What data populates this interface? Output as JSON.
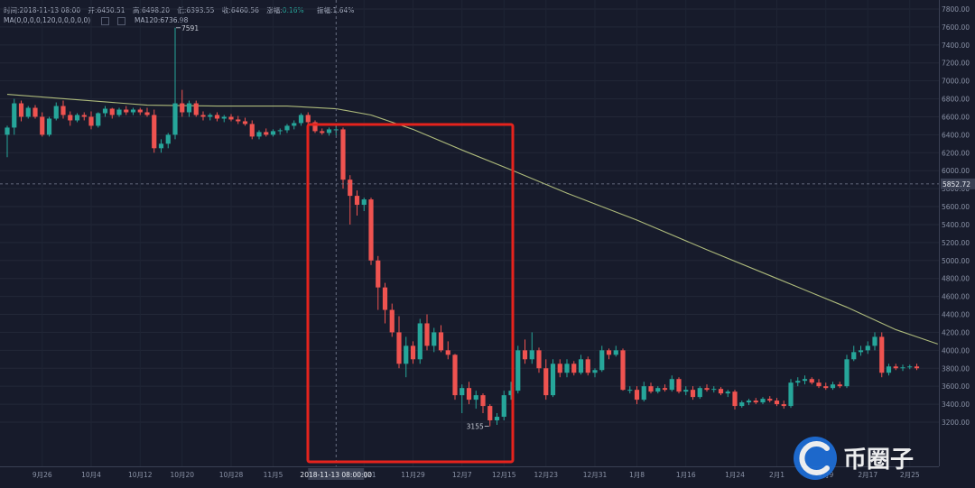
{
  "header": {
    "time": "时间:2018-11-13 08:00",
    "open": "开:6450.51",
    "high": "高:6498.20",
    "low": "低:6393.55",
    "close": "收:6460.56",
    "change_label": "涨幅:",
    "change_value": "0.16%",
    "amplitude": "振幅:1.64%",
    "ma_params": "MA(0,0,0,0,120,0,0,0,0,0)",
    "ma120": "MA120:6736.98"
  },
  "crosshair": {
    "date_label": "2018-11-13 08:00:00",
    "price_label": "5852.72"
  },
  "annotations": {
    "high_label": "7591",
    "low_label": "3155"
  },
  "watermark": {
    "text": "币圈子"
  },
  "colors": {
    "up": "#26a69a",
    "down": "#ef5350",
    "ma": "#c8d68a",
    "highlight_box": "#e5231d",
    "background": "#171b2b"
  },
  "chart_data": {
    "type": "candlestick",
    "series_name": "MA120",
    "y_ticks": [
      "3200.00",
      "3400.00",
      "3600.00",
      "3800.00",
      "4000.00",
      "4200.00",
      "4400.00",
      "4600.00",
      "4800.00",
      "5000.00",
      "5200.00",
      "5400.00",
      "5600.00",
      "5800.00",
      "6000.00",
      "6200.00",
      "6400.00",
      "6600.00",
      "6800.00",
      "7000.00",
      "7200.00",
      "7400.00",
      "7600.00",
      "7800.00"
    ],
    "x_ticks": [
      "9月26",
      "10月4",
      "10月12",
      "10月20",
      "10月28",
      "11月5",
      "11月21",
      "11月29",
      "12月7",
      "12月15",
      "12月23",
      "12月31",
      "1月8",
      "1月16",
      "1月24",
      "2月1",
      "2月9",
      "2月17",
      "2月25"
    ],
    "ylim": [
      3000,
      7850
    ],
    "candles": [
      {
        "o": 6400,
        "h": 6500,
        "l": 6150,
        "c": 6480
      },
      {
        "o": 6480,
        "h": 6800,
        "l": 6400,
        "c": 6750
      },
      {
        "o": 6750,
        "h": 6780,
        "l": 6550,
        "c": 6600
      },
      {
        "o": 6600,
        "h": 6720,
        "l": 6580,
        "c": 6700
      },
      {
        "o": 6700,
        "h": 6730,
        "l": 6580,
        "c": 6600
      },
      {
        "o": 6600,
        "h": 6650,
        "l": 6380,
        "c": 6400
      },
      {
        "o": 6400,
        "h": 6600,
        "l": 6380,
        "c": 6580
      },
      {
        "o": 6580,
        "h": 6760,
        "l": 6560,
        "c": 6720
      },
      {
        "o": 6720,
        "h": 6780,
        "l": 6580,
        "c": 6620
      },
      {
        "o": 6620,
        "h": 6660,
        "l": 6500,
        "c": 6560
      },
      {
        "o": 6560,
        "h": 6640,
        "l": 6540,
        "c": 6620
      },
      {
        "o": 6620,
        "h": 6650,
        "l": 6560,
        "c": 6600
      },
      {
        "o": 6600,
        "h": 6660,
        "l": 6460,
        "c": 6500
      },
      {
        "o": 6500,
        "h": 6650,
        "l": 6480,
        "c": 6640
      },
      {
        "o": 6640,
        "h": 6720,
        "l": 6600,
        "c": 6690
      },
      {
        "o": 6690,
        "h": 6700,
        "l": 6580,
        "c": 6620
      },
      {
        "o": 6620,
        "h": 6700,
        "l": 6600,
        "c": 6680
      },
      {
        "o": 6680,
        "h": 6720,
        "l": 6620,
        "c": 6650
      },
      {
        "o": 6650,
        "h": 6700,
        "l": 6620,
        "c": 6680
      },
      {
        "o": 6680,
        "h": 6700,
        "l": 6620,
        "c": 6650
      },
      {
        "o": 6650,
        "h": 6700,
        "l": 6600,
        "c": 6620
      },
      {
        "o": 6620,
        "h": 6680,
        "l": 6200,
        "c": 6250
      },
      {
        "o": 6250,
        "h": 6350,
        "l": 6200,
        "c": 6300
      },
      {
        "o": 6300,
        "h": 6420,
        "l": 6250,
        "c": 6400
      },
      {
        "o": 6400,
        "h": 7591,
        "l": 6350,
        "c": 6750
      },
      {
        "o": 6750,
        "h": 6900,
        "l": 6600,
        "c": 6650
      },
      {
        "o": 6650,
        "h": 6780,
        "l": 6600,
        "c": 6750
      },
      {
        "o": 6750,
        "h": 6780,
        "l": 6600,
        "c": 6620
      },
      {
        "o": 6620,
        "h": 6660,
        "l": 6560,
        "c": 6600
      },
      {
        "o": 6600,
        "h": 6640,
        "l": 6560,
        "c": 6620
      },
      {
        "o": 6620,
        "h": 6650,
        "l": 6550,
        "c": 6580
      },
      {
        "o": 6580,
        "h": 6620,
        "l": 6540,
        "c": 6600
      },
      {
        "o": 6600,
        "h": 6630,
        "l": 6550,
        "c": 6570
      },
      {
        "o": 6570,
        "h": 6610,
        "l": 6520,
        "c": 6550
      },
      {
        "o": 6550,
        "h": 6590,
        "l": 6500,
        "c": 6520
      },
      {
        "o": 6520,
        "h": 6560,
        "l": 6350,
        "c": 6380
      },
      {
        "o": 6380,
        "h": 6450,
        "l": 6350,
        "c": 6430
      },
      {
        "o": 6430,
        "h": 6470,
        "l": 6380,
        "c": 6400
      },
      {
        "o": 6400,
        "h": 6460,
        "l": 6380,
        "c": 6440
      },
      {
        "o": 6440,
        "h": 6470,
        "l": 6400,
        "c": 6450
      },
      {
        "o": 6450,
        "h": 6520,
        "l": 6420,
        "c": 6500
      },
      {
        "o": 6500,
        "h": 6560,
        "l": 6460,
        "c": 6530
      },
      {
        "o": 6530,
        "h": 6640,
        "l": 6500,
        "c": 6620
      },
      {
        "o": 6620,
        "h": 6650,
        "l": 6520,
        "c": 6540
      },
      {
        "o": 6540,
        "h": 6560,
        "l": 6420,
        "c": 6440
      },
      {
        "o": 6440,
        "h": 6470,
        "l": 6400,
        "c": 6420
      },
      {
        "o": 6420,
        "h": 6480,
        "l": 6390,
        "c": 6460
      },
      {
        "o": 6450,
        "h": 6498,
        "l": 6393,
        "c": 6460
      },
      {
        "o": 6460,
        "h": 6480,
        "l": 5800,
        "c": 5900
      },
      {
        "o": 5900,
        "h": 5950,
        "l": 5400,
        "c": 5720
      },
      {
        "o": 5720,
        "h": 5780,
        "l": 5500,
        "c": 5620
      },
      {
        "o": 5620,
        "h": 5700,
        "l": 5550,
        "c": 5680
      },
      {
        "o": 5680,
        "h": 5700,
        "l": 4950,
        "c": 5000
      },
      {
        "o": 5000,
        "h": 5050,
        "l": 4450,
        "c": 4700
      },
      {
        "o": 4700,
        "h": 4750,
        "l": 4300,
        "c": 4450
      },
      {
        "o": 4450,
        "h": 4520,
        "l": 4150,
        "c": 4200
      },
      {
        "o": 4200,
        "h": 4380,
        "l": 3800,
        "c": 3850
      },
      {
        "o": 3850,
        "h": 4150,
        "l": 3700,
        "c": 4050
      },
      {
        "o": 4050,
        "h": 4100,
        "l": 3850,
        "c": 3900
      },
      {
        "o": 3900,
        "h": 4350,
        "l": 3850,
        "c": 4300
      },
      {
        "o": 4300,
        "h": 4400,
        "l": 4000,
        "c": 4050
      },
      {
        "o": 4050,
        "h": 4250,
        "l": 3980,
        "c": 4200
      },
      {
        "o": 4200,
        "h": 4280,
        "l": 3980,
        "c": 4000
      },
      {
        "o": 4000,
        "h": 4100,
        "l": 3900,
        "c": 3950
      },
      {
        "o": 3950,
        "h": 3960,
        "l": 3450,
        "c": 3500
      },
      {
        "o": 3500,
        "h": 3620,
        "l": 3300,
        "c": 3580
      },
      {
        "o": 3580,
        "h": 3650,
        "l": 3400,
        "c": 3450
      },
      {
        "o": 3450,
        "h": 3550,
        "l": 3350,
        "c": 3500
      },
      {
        "o": 3500,
        "h": 3520,
        "l": 3300,
        "c": 3380
      },
      {
        "o": 3380,
        "h": 3400,
        "l": 3155,
        "c": 3220
      },
      {
        "o": 3220,
        "h": 3300,
        "l": 3170,
        "c": 3260
      },
      {
        "o": 3260,
        "h": 3550,
        "l": 3220,
        "c": 3500
      },
      {
        "o": 3500,
        "h": 3650,
        "l": 3450,
        "c": 3550
      },
      {
        "o": 3550,
        "h": 4050,
        "l": 3520,
        "c": 4000
      },
      {
        "o": 4000,
        "h": 4120,
        "l": 3850,
        "c": 3900
      },
      {
        "o": 3900,
        "h": 4200,
        "l": 3850,
        "c": 4000
      },
      {
        "o": 4000,
        "h": 4030,
        "l": 3750,
        "c": 3800
      },
      {
        "o": 3800,
        "h": 3900,
        "l": 3450,
        "c": 3500
      },
      {
        "o": 3500,
        "h": 3900,
        "l": 3480,
        "c": 3850
      },
      {
        "o": 3850,
        "h": 3900,
        "l": 3700,
        "c": 3750
      },
      {
        "o": 3750,
        "h": 3900,
        "l": 3700,
        "c": 3850
      },
      {
        "o": 3850,
        "h": 3880,
        "l": 3720,
        "c": 3750
      },
      {
        "o": 3750,
        "h": 3950,
        "l": 3730,
        "c": 3900
      },
      {
        "o": 3900,
        "h": 3930,
        "l": 3720,
        "c": 3750
      },
      {
        "o": 3750,
        "h": 3800,
        "l": 3700,
        "c": 3780
      },
      {
        "o": 3780,
        "h": 4050,
        "l": 3760,
        "c": 4000
      },
      {
        "o": 4000,
        "h": 4020,
        "l": 3900,
        "c": 3950
      },
      {
        "o": 3950,
        "h": 4050,
        "l": 3930,
        "c": 4000
      },
      {
        "o": 4000,
        "h": 4020,
        "l": 3550,
        "c": 3560
      },
      {
        "o": 3560,
        "h": 3600,
        "l": 3520,
        "c": 3560
      },
      {
        "o": 3560,
        "h": 3600,
        "l": 3400,
        "c": 3450
      },
      {
        "o": 3450,
        "h": 3650,
        "l": 3430,
        "c": 3600
      },
      {
        "o": 3600,
        "h": 3640,
        "l": 3520,
        "c": 3540
      },
      {
        "o": 3540,
        "h": 3600,
        "l": 3520,
        "c": 3580
      },
      {
        "o": 3580,
        "h": 3620,
        "l": 3540,
        "c": 3560
      },
      {
        "o": 3560,
        "h": 3720,
        "l": 3540,
        "c": 3680
      },
      {
        "o": 3680,
        "h": 3700,
        "l": 3520,
        "c": 3540
      },
      {
        "o": 3540,
        "h": 3600,
        "l": 3500,
        "c": 3560
      },
      {
        "o": 3560,
        "h": 3600,
        "l": 3450,
        "c": 3480
      },
      {
        "o": 3480,
        "h": 3600,
        "l": 3460,
        "c": 3580
      },
      {
        "o": 3580,
        "h": 3620,
        "l": 3540,
        "c": 3560
      },
      {
        "o": 3560,
        "h": 3600,
        "l": 3530,
        "c": 3570
      },
      {
        "o": 3570,
        "h": 3590,
        "l": 3500,
        "c": 3520
      },
      {
        "o": 3520,
        "h": 3560,
        "l": 3480,
        "c": 3540
      },
      {
        "o": 3540,
        "h": 3560,
        "l": 3340,
        "c": 3380
      },
      {
        "o": 3380,
        "h": 3440,
        "l": 3360,
        "c": 3420
      },
      {
        "o": 3420,
        "h": 3460,
        "l": 3390,
        "c": 3440
      },
      {
        "o": 3440,
        "h": 3470,
        "l": 3400,
        "c": 3420
      },
      {
        "o": 3420,
        "h": 3480,
        "l": 3400,
        "c": 3460
      },
      {
        "o": 3460,
        "h": 3490,
        "l": 3420,
        "c": 3440
      },
      {
        "o": 3440,
        "h": 3470,
        "l": 3380,
        "c": 3400
      },
      {
        "o": 3400,
        "h": 3440,
        "l": 3350,
        "c": 3380
      },
      {
        "o": 3380,
        "h": 3680,
        "l": 3360,
        "c": 3640
      },
      {
        "o": 3640,
        "h": 3700,
        "l": 3600,
        "c": 3660
      },
      {
        "o": 3660,
        "h": 3720,
        "l": 3620,
        "c": 3680
      },
      {
        "o": 3680,
        "h": 3700,
        "l": 3620,
        "c": 3640
      },
      {
        "o": 3640,
        "h": 3680,
        "l": 3580,
        "c": 3600
      },
      {
        "o": 3600,
        "h": 3640,
        "l": 3560,
        "c": 3580
      },
      {
        "o": 3580,
        "h": 3650,
        "l": 3560,
        "c": 3620
      },
      {
        "o": 3620,
        "h": 3650,
        "l": 3580,
        "c": 3600
      },
      {
        "o": 3600,
        "h": 3950,
        "l": 3580,
        "c": 3900
      },
      {
        "o": 3900,
        "h": 4050,
        "l": 3880,
        "c": 3980
      },
      {
        "o": 3980,
        "h": 4050,
        "l": 3940,
        "c": 4000
      },
      {
        "o": 4000,
        "h": 4100,
        "l": 3960,
        "c": 4050
      },
      {
        "o": 4050,
        "h": 4200,
        "l": 4000,
        "c": 4150
      },
      {
        "o": 4150,
        "h": 4200,
        "l": 3700,
        "c": 3750
      },
      {
        "o": 3750,
        "h": 3850,
        "l": 3720,
        "c": 3820
      },
      {
        "o": 3820,
        "h": 3850,
        "l": 3780,
        "c": 3800
      },
      {
        "o": 3800,
        "h": 3840,
        "l": 3770,
        "c": 3810
      },
      {
        "o": 3810,
        "h": 3840,
        "l": 3790,
        "c": 3820
      },
      {
        "o": 3820,
        "h": 3850,
        "l": 3780,
        "c": 3800
      }
    ],
    "ma120": [
      {
        "i": 0,
        "v": 6850
      },
      {
        "i": 10,
        "v": 6790
      },
      {
        "i": 20,
        "v": 6730
      },
      {
        "i": 30,
        "v": 6720
      },
      {
        "i": 40,
        "v": 6720
      },
      {
        "i": 47,
        "v": 6690
      },
      {
        "i": 52,
        "v": 6620
      },
      {
        "i": 58,
        "v": 6460
      },
      {
        "i": 65,
        "v": 6230
      },
      {
        "i": 72,
        "v": 6010
      },
      {
        "i": 80,
        "v": 5750
      },
      {
        "i": 90,
        "v": 5450
      },
      {
        "i": 100,
        "v": 5120
      },
      {
        "i": 110,
        "v": 4800
      },
      {
        "i": 120,
        "v": 4480
      },
      {
        "i": 127,
        "v": 4230
      },
      {
        "i": 133,
        "v": 4070
      }
    ]
  }
}
